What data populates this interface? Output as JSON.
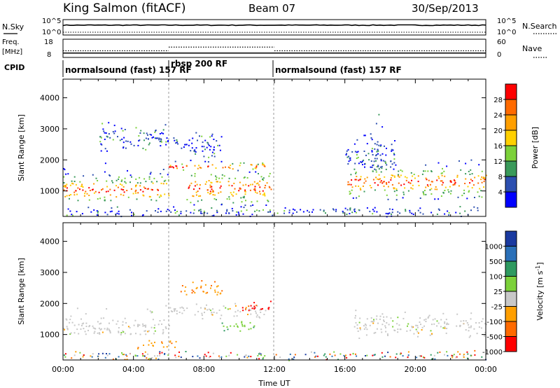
{
  "header": {
    "station": "King Salmon (fitACF)",
    "beam": "Beam 07",
    "date": "30/Sep/2013"
  },
  "side_labels": {
    "nsky": "N.Sky",
    "freq_line1": "Freq.",
    "freq_line2": "[MHz]",
    "cpid": "CPID",
    "nsearch": "N.Search",
    "nave": "Nave"
  },
  "chart_data": [
    {
      "type": "line",
      "name": "noise-panel",
      "left_axis": {
        "label": "N.Sky",
        "ticks": [
          "10^5",
          "10^0"
        ]
      },
      "right_axis": {
        "label": "N.Search",
        "ticks": [
          "10^5",
          "10^0"
        ]
      },
      "nsky_level": 3.2,
      "nsearch_level": 0.9
    },
    {
      "type": "line",
      "name": "frequency-panel",
      "left_axis": {
        "label_lines": [
          "Freq.",
          "[MHz]"
        ],
        "ticks": [
          "18",
          "8"
        ],
        "range": [
          8,
          18
        ]
      },
      "right_axis": {
        "label": "Nave",
        "ticks": [
          "60",
          "0"
        ],
        "range": [
          0,
          60
        ]
      },
      "freq_mhz": 10.4,
      "nave_segments": [
        {
          "from_hr": 0.0,
          "to_hr": 6.0,
          "nave": 22
        },
        {
          "from_hr": 6.0,
          "to_hr": 12.0,
          "nave": 34
        },
        {
          "from_hr": 12.0,
          "to_hr": 24.0,
          "nave": 22
        }
      ]
    },
    {
      "type": "table",
      "name": "cpid-bar",
      "label": "CPID",
      "segments": [
        {
          "from_hr": 0.0,
          "to_hr": 6.0,
          "text": "normalsound (fast) 157 RF"
        },
        {
          "from_hr": 6.0,
          "to_hr": 12.0,
          "text": "rbsp 200 RF"
        },
        {
          "from_hr": 12.0,
          "to_hr": 24.0,
          "text": "normalsound (fast) 157 RF"
        }
      ]
    },
    {
      "type": "heatmap",
      "name": "power-panel",
      "ylabel": "Slant Range [km]",
      "yticks": [
        1000,
        2000,
        3000,
        4000
      ],
      "ylim": [
        180,
        4600
      ],
      "xlim": [
        0,
        24
      ],
      "colorbar": {
        "label": "Power [dB]",
        "ticks": [
          "28",
          "24",
          "20",
          "16",
          "12",
          "8",
          "4"
        ],
        "colors": [
          "#ff0000",
          "#ff6a00",
          "#ff9f00",
          "#ffd000",
          "#7cd13a",
          "#3a9a5a",
          "#2c4fb0",
          "#0000ff"
        ]
      },
      "scatter_regions": [
        {
          "t": [
            0.0,
            6.0
          ],
          "r": [
            700,
            2200
          ],
          "core": 1050,
          "hi": true
        },
        {
          "t": [
            2.0,
            6.0
          ],
          "r": [
            2300,
            3500
          ],
          "core": 2700,
          "hi": false
        },
        {
          "t": [
            6.0,
            11.5
          ],
          "r": [
            1600,
            2100
          ],
          "core": 1800,
          "hi": true
        },
        {
          "t": [
            6.0,
            9.0
          ],
          "r": [
            2100,
            3200
          ],
          "core": 2500,
          "hi": false
        },
        {
          "t": [
            7.0,
            11.8
          ],
          "r": [
            500,
            2200
          ],
          "core": 1100,
          "hi": true
        },
        {
          "t": [
            16.0,
            24.0
          ],
          "r": [
            700,
            2300
          ],
          "core": 1300,
          "hi": true
        },
        {
          "t": [
            16.0,
            19.0
          ],
          "r": [
            1700,
            3500
          ],
          "core": 2100,
          "hi": false
        },
        {
          "t": [
            0.0,
            24.0
          ],
          "r": [
            180,
            600
          ],
          "core": 350,
          "hi": false
        }
      ]
    },
    {
      "type": "heatmap",
      "name": "velocity-panel",
      "ylabel": "Slant Range [km]",
      "yticks": [
        1000,
        2000,
        3000,
        4000
      ],
      "ylim": [
        180,
        4600
      ],
      "xlim": [
        0,
        24
      ],
      "xlabel": "Time UT",
      "xticks": [
        "00:00",
        "04:00",
        "08:00",
        "12:00",
        "16:00",
        "20:00",
        "00:00"
      ],
      "colorbar": {
        "label": "Velocity [m s^-1]",
        "ticks": [
          "1000",
          "500",
          "100",
          "25",
          "-25",
          "-100",
          "-500",
          "-1000"
        ],
        "colors": [
          "#1a3aa0",
          "#2a70b8",
          "#2e9a60",
          "#7cd13a",
          "#c8c8c8",
          "#ff9f00",
          "#ff6a00",
          "#ff0000"
        ]
      },
      "scatter_regions": [
        {
          "t": [
            0.0,
            6.0
          ],
          "r": [
            1000,
            2100
          ],
          "core": 1200,
          "kind": "grey"
        },
        {
          "t": [
            4.0,
            6.5
          ],
          "r": [
            500,
            900
          ],
          "core": 700,
          "kind": "orange"
        },
        {
          "t": [
            6.0,
            11.5
          ],
          "r": [
            1500,
            2200
          ],
          "core": 1800,
          "kind": "grey"
        },
        {
          "t": [
            6.5,
            9.0
          ],
          "r": [
            2300,
            3000
          ],
          "core": 2500,
          "kind": "orange"
        },
        {
          "t": [
            10.0,
            12.0
          ],
          "r": [
            1700,
            2200
          ],
          "core": 1900,
          "kind": "red"
        },
        {
          "t": [
            9.0,
            11.0
          ],
          "r": [
            1000,
            1600
          ],
          "core": 1300,
          "kind": "green"
        },
        {
          "t": [
            16.5,
            24.0
          ],
          "r": [
            900,
            2000
          ],
          "core": 1300,
          "kind": "grey"
        },
        {
          "t": [
            0.0,
            24.0
          ],
          "r": [
            180,
            600
          ],
          "core": 350,
          "kind": "mixed"
        }
      ]
    }
  ]
}
